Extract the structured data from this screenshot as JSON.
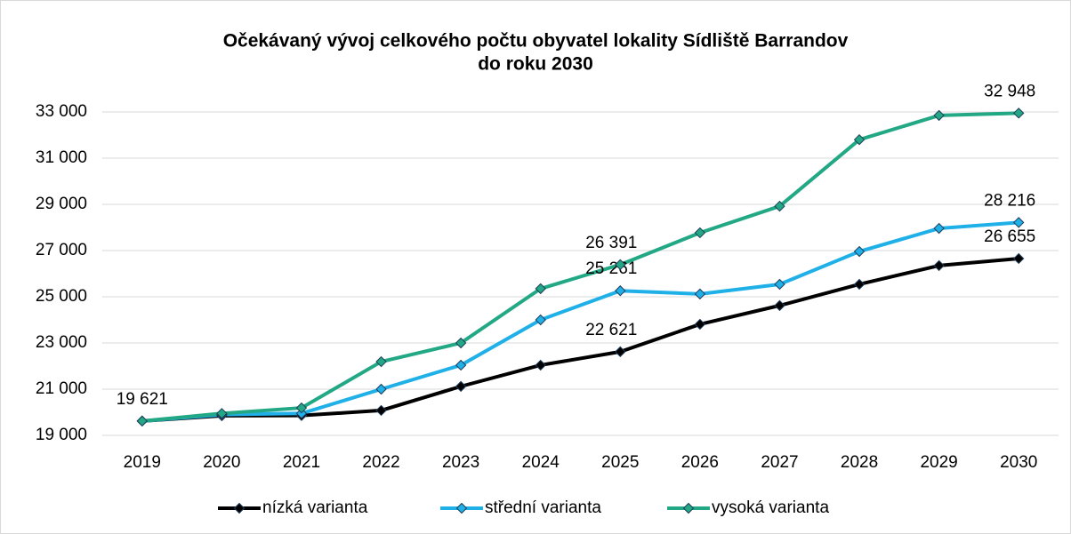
{
  "chart_data": {
    "type": "line",
    "title": [
      "Očekávaný vývoj celkového počtu obyvatel lokality Sídliště Barrandov",
      "do roku 2030"
    ],
    "categories": [
      "2019",
      "2020",
      "2021",
      "2022",
      "2023",
      "2024",
      "2025",
      "2026",
      "2027",
      "2028",
      "2029",
      "2030"
    ],
    "series": [
      {
        "name": "nízká varianta",
        "color": "#000000",
        "values": [
          19621,
          19850,
          19860,
          20080,
          21120,
          22040,
          22621,
          23810,
          24620,
          25540,
          26350,
          26655
        ],
        "value_labels": [
          "19 621",
          null,
          null,
          null,
          null,
          null,
          "22 621",
          null,
          null,
          null,
          null,
          "26 655"
        ]
      },
      {
        "name": "střední varianta",
        "color": "#1fb0e8",
        "values": [
          19621,
          19900,
          19950,
          21000,
          22040,
          24000,
          25261,
          25120,
          25540,
          26960,
          27960,
          28216
        ],
        "value_labels": [
          null,
          null,
          null,
          null,
          null,
          null,
          "25 261",
          null,
          null,
          null,
          null,
          "28 216"
        ]
      },
      {
        "name": "vysoká varianta",
        "color": "#22a884",
        "values": [
          19621,
          19950,
          20190,
          22190,
          23000,
          25350,
          26391,
          27770,
          28920,
          31800,
          32850,
          32948
        ],
        "value_labels": [
          null,
          null,
          null,
          null,
          null,
          null,
          "26 391",
          null,
          null,
          null,
          null,
          "32 948"
        ]
      }
    ],
    "ylim": [
      19000,
      33000
    ],
    "yticks": [
      {
        "value": 19000,
        "label": "19 000"
      },
      {
        "value": 21000,
        "label": "21 000"
      },
      {
        "value": 23000,
        "label": "23 000"
      },
      {
        "value": 25000,
        "label": "25 000"
      },
      {
        "value": 27000,
        "label": "27 000"
      },
      {
        "value": 29000,
        "label": "29 000"
      },
      {
        "value": 31000,
        "label": "31 000"
      },
      {
        "value": 33000,
        "label": "33 000"
      }
    ],
    "grid": true,
    "legend": "bottom"
  }
}
